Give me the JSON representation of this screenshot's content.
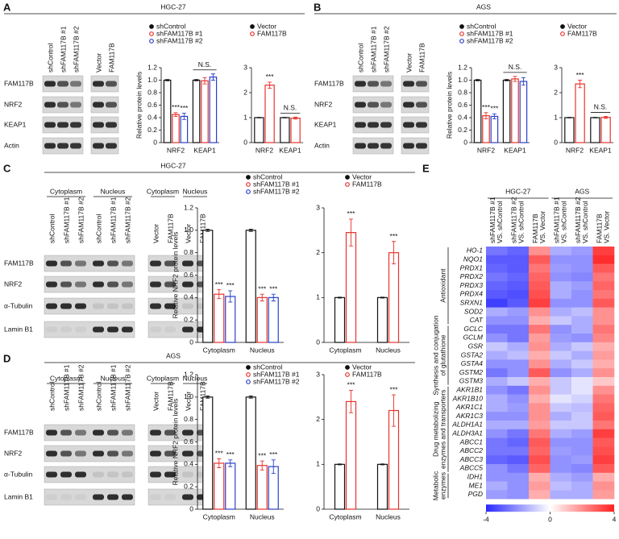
{
  "figure": {
    "panels": [
      {
        "letter": "A",
        "title": "HGC-27",
        "proteins": [
          "FAM117B",
          "NRF2",
          "KEAP1",
          "Actin"
        ],
        "lane_sets": [
          {
            "lanes": [
              "shControl",
              "shFAM117B #1",
              "shFAM117B #2"
            ]
          },
          {
            "lanes": [
              "Vector",
              "FAM117B"
            ]
          }
        ]
      },
      {
        "letter": "B",
        "title": "AGS",
        "proteins": [
          "FAM117B",
          "NRF2",
          "KEAP1",
          "Actin"
        ],
        "lane_sets": [
          {
            "lanes": [
              "shControl",
              "shFAM117B #1",
              "shFAM117B #2"
            ]
          },
          {
            "lanes": [
              "Vector",
              "FAM117B"
            ]
          }
        ]
      },
      {
        "letter": "C",
        "title": "HGC-27",
        "proteins": [
          "FAM117B",
          "NRF2",
          "α-Tubulin",
          "Lamin B1"
        ],
        "lane_sets": [
          {
            "label": "Cytoplasm",
            "lanes": [
              "shControl",
              "shFAM117B #1",
              "shFAM117B #2"
            ]
          },
          {
            "label": "Nucleus",
            "lanes": [
              "shControl",
              "shFAM117B #1",
              "shFAM117B #2"
            ]
          },
          {
            "label": "Cytoplasm",
            "lanes": [
              "Vector",
              "FAM117B"
            ]
          },
          {
            "label": "Nucleus",
            "lanes": [
              "Vector",
              "FAM117B"
            ]
          }
        ]
      },
      {
        "letter": "D",
        "title": "AGS",
        "proteins": [
          "FAM117B",
          "NRF2",
          "α-Tubulin",
          "Lamin B1"
        ],
        "lane_sets": [
          {
            "label": "Cytoplasm",
            "lanes": [
              "shControl",
              "shFAM117B #1",
              "shFAM117B #2"
            ]
          },
          {
            "label": "Nucleus",
            "lanes": [
              "shControl",
              "shFAM117B #1",
              "shFAM117B #2"
            ]
          },
          {
            "label": "Cytoplasm",
            "lanes": [
              "Vector",
              "FAM117B"
            ]
          },
          {
            "label": "Nucleus",
            "lanes": [
              "Vector",
              "FAM117B"
            ]
          }
        ]
      },
      {
        "letter": "E"
      }
    ]
  },
  "chart_data": [
    {
      "type": "bar",
      "ylabel": "Relative protein levels",
      "categories": [
        "NRF2",
        "KEAP1"
      ],
      "ylim": [
        0,
        1.2
      ],
      "yticks": [
        0,
        0.2,
        0.4,
        0.6,
        0.8,
        {
          "value": 1,
          "label": "1.0"
        },
        1.2
      ],
      "group_annotations": [
        null,
        "N.S."
      ],
      "series": [
        {
          "name": "shControl",
          "color": "#111111",
          "values": [
            1,
            1
          ],
          "errors": [
            0.01,
            0.01
          ],
          "significance": [
            null,
            null
          ]
        },
        {
          "name": "shFAM117B #1",
          "color": "#e8322c",
          "values": [
            0.45,
            0.99
          ],
          "errors": [
            0.03,
            0.05
          ],
          "significance": [
            "***",
            null
          ]
        },
        {
          "name": "shFAM117B #2",
          "color": "#2a3fc8",
          "values": [
            0.42,
            1.05
          ],
          "errors": [
            0.05,
            0.05
          ],
          "significance": [
            "***",
            null
          ]
        }
      ]
    },
    {
      "type": "bar",
      "categories": [
        "NRF2",
        "KEAP1"
      ],
      "ylim": [
        0,
        3
      ],
      "yticks": [
        0,
        1,
        2,
        3
      ],
      "group_annotations": [
        null,
        "N.S."
      ],
      "series": [
        {
          "name": "Vector",
          "color": "#111111",
          "values": [
            1,
            1
          ],
          "errors": [
            0.01,
            0.01
          ],
          "significance": [
            null,
            null
          ]
        },
        {
          "name": "FAM117B",
          "color": "#e8322c",
          "values": [
            2.3,
            0.98
          ],
          "errors": [
            0.12,
            0.04
          ],
          "significance": [
            "***",
            null
          ]
        }
      ]
    },
    {
      "type": "bar",
      "ylabel": "Relative protein levels",
      "categories": [
        "NRF2",
        "KEAP1"
      ],
      "ylim": [
        0,
        1.2
      ],
      "yticks": [
        0,
        0.2,
        0.4,
        0.6,
        0.8,
        {
          "value": 1,
          "label": "1.0"
        },
        1.2
      ],
      "group_annotations": [
        null,
        "N.S."
      ],
      "series": [
        {
          "name": "shControl",
          "color": "#111111",
          "values": [
            1,
            1
          ],
          "errors": [
            0.01,
            0.01
          ],
          "significance": [
            null,
            null
          ]
        },
        {
          "name": "shFAM117B #1",
          "color": "#e8322c",
          "values": [
            0.43,
            1.02
          ],
          "errors": [
            0.05,
            0.04
          ],
          "significance": [
            "***",
            null
          ]
        },
        {
          "name": "shFAM117B #2",
          "color": "#2a3fc8",
          "values": [
            0.42,
            0.98
          ],
          "errors": [
            0.04,
            0.06
          ],
          "significance": [
            "***",
            null
          ]
        }
      ]
    },
    {
      "type": "bar",
      "categories": [
        "NRF2",
        "KEAP1"
      ],
      "ylim": [
        0,
        3
      ],
      "yticks": [
        0,
        1,
        2,
        3
      ],
      "group_annotations": [
        null,
        "N.S."
      ],
      "series": [
        {
          "name": "Vector",
          "color": "#111111",
          "values": [
            1,
            1
          ],
          "errors": [
            0.01,
            0.01
          ],
          "significance": [
            null,
            null
          ]
        },
        {
          "name": "FAM117B",
          "color": "#e8322c",
          "values": [
            2.35,
            1.01
          ],
          "errors": [
            0.15,
            0.04
          ],
          "significance": [
            "***",
            null
          ]
        }
      ]
    },
    {
      "type": "bar",
      "ylabel": "Relative NRF2 protein levels",
      "categories": [
        "Cytoplasm",
        "Nucleus"
      ],
      "ylim": [
        0,
        1.2
      ],
      "yticks": [
        0,
        0.2,
        0.4,
        0.6,
        0.8,
        {
          "value": 1,
          "label": "1.0"
        },
        1.2
      ],
      "series": [
        {
          "name": "shControl",
          "color": "#111111",
          "values": [
            1,
            1
          ],
          "errors": [
            0.01,
            0.01
          ],
          "significance": [
            null,
            null
          ]
        },
        {
          "name": "shFAM117B #1",
          "color": "#e8322c",
          "values": [
            0.43,
            0.4
          ],
          "errors": [
            0.04,
            0.03
          ],
          "significance": [
            "***",
            "***"
          ]
        },
        {
          "name": "shFAM117B #2",
          "color": "#2a3fc8",
          "values": [
            0.41,
            0.4
          ],
          "errors": [
            0.05,
            0.03
          ],
          "significance": [
            "***",
            "***"
          ]
        }
      ]
    },
    {
      "type": "bar",
      "categories": [
        "Cytoplasm",
        "Nucleus"
      ],
      "ylim": [
        0,
        3
      ],
      "yticks": [
        0,
        1,
        2,
        3
      ],
      "series": [
        {
          "name": "Vector",
          "color": "#111111",
          "values": [
            1,
            1
          ],
          "errors": [
            0.01,
            0.01
          ],
          "significance": [
            null,
            null
          ]
        },
        {
          "name": "FAM117B",
          "color": "#e8322c",
          "values": [
            2.45,
            2.0
          ],
          "errors": [
            0.3,
            0.25
          ],
          "significance": [
            "***",
            "***"
          ]
        }
      ]
    },
    {
      "type": "bar",
      "ylabel": "Relative NRF2 protein levels",
      "categories": [
        "Cytoplasm",
        "Nucleus"
      ],
      "ylim": [
        0,
        1.2
      ],
      "yticks": [
        0,
        0.2,
        0.4,
        0.6,
        0.8,
        {
          "value": 1,
          "label": "1.0"
        },
        1.2
      ],
      "series": [
        {
          "name": "shControl",
          "color": "#111111",
          "values": [
            1,
            1
          ],
          "errors": [
            0.01,
            0.01
          ],
          "significance": [
            null,
            null
          ]
        },
        {
          "name": "shFAM117B #1",
          "color": "#e8322c",
          "values": [
            0.41,
            0.39
          ],
          "errors": [
            0.04,
            0.04
          ],
          "significance": [
            "***",
            "***"
          ]
        },
        {
          "name": "shFAM117B #2",
          "color": "#2a3fc8",
          "values": [
            0.41,
            0.38
          ],
          "errors": [
            0.03,
            0.06
          ],
          "significance": [
            "***",
            "***"
          ]
        }
      ]
    },
    {
      "type": "bar",
      "categories": [
        "Cytoplasm",
        "Nucleus"
      ],
      "ylim": [
        0,
        3
      ],
      "yticks": [
        0,
        1,
        2,
        3
      ],
      "series": [
        {
          "name": "Vector",
          "color": "#111111",
          "values": [
            1,
            1
          ],
          "errors": [
            0.01,
            0.01
          ],
          "significance": [
            null,
            null
          ]
        },
        {
          "name": "FAM117B",
          "color": "#e8322c",
          "values": [
            2.4,
            2.2
          ],
          "errors": [
            0.25,
            0.35
          ],
          "significance": [
            "***",
            "***"
          ]
        }
      ]
    },
    {
      "type": "heatmap",
      "column_groups": [
        "HGC-27",
        "AGS"
      ],
      "x_labels": [
        [
          "shFAM117B #1",
          "VS. shControl"
        ],
        [
          "shFAM117B #2",
          "VS. shControl"
        ],
        [
          "FAM117B",
          "VS. Vector"
        ],
        [
          "shFAM117B #1",
          "VS. shControl"
        ],
        [
          "shFAM117B #2",
          "VS. shControl"
        ],
        [
          "FAM117B",
          "VS. Vector"
        ]
      ],
      "zlim": [
        -4,
        4
      ],
      "zticks": [
        -4,
        0,
        4
      ],
      "row_groups": [
        {
          "label": [
            "Antioxidant"
          ],
          "rows": [
            {
              "gene": "HO-1",
              "values": [
                -2.5,
                -2.8,
                2.0,
                -1.5,
                -1.8,
                3.5
              ]
            },
            {
              "gene": "NQO1",
              "values": [
                -3,
                -3,
                3,
                -2,
                -2,
                3.8
              ]
            },
            {
              "gene": "PRDX1",
              "values": [
                -2.8,
                -3,
                2.5,
                -1.8,
                -2,
                3
              ]
            },
            {
              "gene": "PRDX2",
              "values": [
                -2.5,
                -2.8,
                2.8,
                -2,
                -2.2,
                2.5
              ]
            },
            {
              "gene": "PRDX3",
              "values": [
                -2.8,
                -3,
                3,
                -1.5,
                -1.8,
                2.8
              ]
            },
            {
              "gene": "PRDX4",
              "values": [
                -3,
                -3.2,
                3.2,
                -1.5,
                -2,
                2.5
              ]
            },
            {
              "gene": "SRXN1",
              "values": [
                -3.5,
                -3,
                3.5,
                -2,
                -2,
                3
              ]
            },
            {
              "gene": "SOD2",
              "values": [
                -1.5,
                -1.8,
                2,
                -1.5,
                -1.2,
                2
              ]
            },
            {
              "gene": "CAT",
              "values": [
                -2,
                -2,
                1.5,
                -1,
                -1.5,
                2
              ]
            }
          ]
        },
        {
          "label": [
            "Synthesis and conjugation",
            "of glutathione"
          ],
          "rows": [
            {
              "gene": "GCLC",
              "values": [
                -2.5,
                -2.5,
                2.5,
                -2,
                -1.5,
                2.5
              ]
            },
            {
              "gene": "GCLM",
              "values": [
                -2,
                -2.5,
                1.8,
                -1.8,
                -2,
                2.2
              ]
            },
            {
              "gene": "GSR",
              "values": [
                -1,
                -1.5,
                2,
                -1.5,
                -1,
                1.5
              ]
            },
            {
              "gene": "GSTA2",
              "values": [
                -1.5,
                -1.2,
                1.5,
                -1,
                -1.5,
                1.8
              ]
            },
            {
              "gene": "GSTA4",
              "values": [
                -2,
                -2,
                2,
                -1.5,
                -1,
                1.5
              ]
            },
            {
              "gene": "GSTM2",
              "values": [
                -2.5,
                -2,
                3,
                -2,
                -1.5,
                2
              ]
            },
            {
              "gene": "GSTM3",
              "values": [
                -1.5,
                -1,
                1.5,
                -1,
                -0.5,
                1
              ]
            }
          ]
        },
        {
          "label": [
            "Drug metabolizing",
            "enzymes and transporters"
          ],
          "rows": [
            {
              "gene": "AKR1B1",
              "values": [
                -2,
                -2.5,
                2,
                -1,
                -0.5,
                2
              ]
            },
            {
              "gene": "AKR1B10",
              "values": [
                -1.5,
                -2,
                1.5,
                -0.5,
                -0.8,
                2.5
              ]
            },
            {
              "gene": "AKR1C1",
              "values": [
                -1.5,
                -1.8,
                2,
                -1,
                -1.2,
                2.8
              ]
            },
            {
              "gene": "AKR1C3",
              "values": [
                -2,
                -2,
                2,
                -1.5,
                -1,
                3
              ]
            },
            {
              "gene": "ALDH1A1",
              "values": [
                -1.5,
                -1.5,
                1.8,
                -1,
                -1,
                2.5
              ]
            },
            {
              "gene": "ALDH3A1",
              "values": [
                -2,
                -2.5,
                2.5,
                -1.5,
                -1.8,
                3.5
              ]
            },
            {
              "gene": "ABCC1",
              "values": [
                -2.5,
                -2.8,
                3,
                -2,
                -2,
                3
              ]
            },
            {
              "gene": "ABCC2",
              "values": [
                -2.5,
                -2.5,
                2.8,
                -1.8,
                -2,
                3.2
              ]
            },
            {
              "gene": "ABCC3",
              "values": [
                -2.8,
                -3,
                3.2,
                -2,
                -1.8,
                3.5
              ]
            },
            {
              "gene": "ABCC5",
              "values": [
                -2,
                -2.5,
                2.8,
                -2,
                -2.2,
                3
              ]
            }
          ]
        },
        {
          "label": [
            "Metabolic",
            "enzymes"
          ],
          "rows": [
            {
              "gene": "IDH1",
              "values": [
                -2,
                -2,
                1.5,
                -1.5,
                -1.8,
                1.5
              ]
            },
            {
              "gene": "ME1",
              "values": [
                -1.5,
                -2,
                1.8,
                -1.2,
                -1.5,
                2
              ]
            },
            {
              "gene": "PGD",
              "values": [
                -1.8,
                -2,
                1.5,
                -1.5,
                -1.5,
                1.8
              ]
            }
          ]
        }
      ]
    }
  ]
}
